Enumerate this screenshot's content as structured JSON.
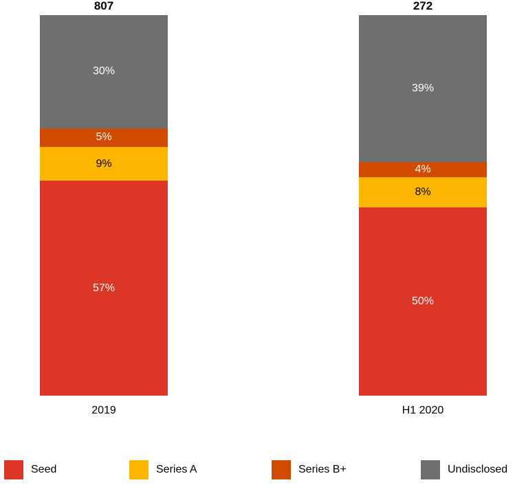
{
  "chart_data": {
    "type": "bar",
    "subtype": "stacked-100-percent",
    "title": "",
    "xlabel": "",
    "ylabel": "",
    "grid": false,
    "legend_position": "bottom",
    "categories": [
      "2019",
      "H1 2020"
    ],
    "totals": [
      "807",
      "272"
    ],
    "series": [
      {
        "name": "Seed",
        "color": "#DC3626",
        "label_color": "#FFFFFF",
        "values": [
          57,
          50
        ]
      },
      {
        "name": "Series A",
        "color": "#FFB600",
        "label_color": "#000000",
        "values": [
          9,
          8
        ]
      },
      {
        "name": "Series B+",
        "color": "#D04A02",
        "label_color": "#FFFFFF",
        "values": [
          5,
          4
        ]
      },
      {
        "name": "Undisclosed",
        "color": "#6F6F6F",
        "label_color": "#FFFFFF",
        "values": [
          30,
          39
        ]
      }
    ],
    "value_label_suffix": "%"
  }
}
